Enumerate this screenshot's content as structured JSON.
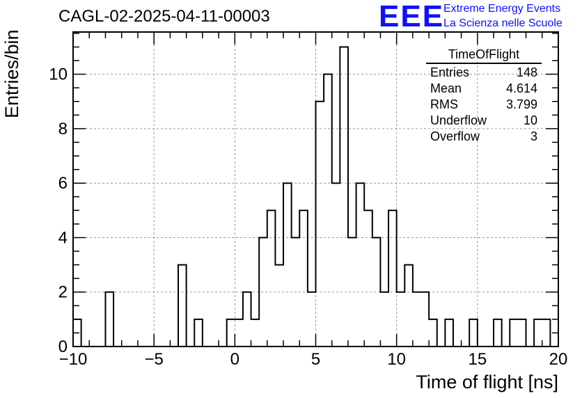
{
  "header": {
    "title": "CAGL-02-2025-04-11-00003",
    "logo_text": "EEE",
    "logo_line1": "Extreme Energy Events",
    "logo_line2": "La Scienza nelle Scuole"
  },
  "stats_box": {
    "title": "TimeOfFlight",
    "rows": [
      {
        "label": "Entries",
        "value": "148"
      },
      {
        "label": "Mean",
        "value": "4.614"
      },
      {
        "label": "RMS",
        "value": "3.799"
      },
      {
        "label": "Underflow",
        "value": "10"
      },
      {
        "label": "Overflow",
        "value": "3"
      }
    ]
  },
  "chart_data": {
    "type": "bar",
    "style": "step-histogram",
    "xlabel": "Time of flight [ns]",
    "ylabel": "Entries/bin",
    "xlim": [
      -10,
      20
    ],
    "ylim": [
      0,
      11.55
    ],
    "bin_width": 0.5,
    "grid": true,
    "x_ticks": [
      "−10",
      "−5",
      "0",
      "5",
      "10",
      "15",
      "20"
    ],
    "y_ticks": [
      "0",
      "2",
      "4",
      "6",
      "8",
      "10"
    ],
    "x_tick_values": [
      -10,
      -5,
      0,
      5,
      10,
      15,
      20
    ],
    "y_tick_values": [
      0,
      2,
      4,
      6,
      8,
      10
    ],
    "bins": [
      {
        "x": -10,
        "y": 1
      },
      {
        "x": -9.5,
        "y": 0
      },
      {
        "x": -9,
        "y": 0
      },
      {
        "x": -8.5,
        "y": 0
      },
      {
        "x": -8,
        "y": 2
      },
      {
        "x": -7.5,
        "y": 0
      },
      {
        "x": -7,
        "y": 0
      },
      {
        "x": -6.5,
        "y": 0
      },
      {
        "x": -6,
        "y": 0
      },
      {
        "x": -5.5,
        "y": 0
      },
      {
        "x": -5,
        "y": 0
      },
      {
        "x": -4.5,
        "y": 0
      },
      {
        "x": -4,
        "y": 0
      },
      {
        "x": -3.5,
        "y": 3
      },
      {
        "x": -3,
        "y": 0
      },
      {
        "x": -2.5,
        "y": 1
      },
      {
        "x": -2,
        "y": 0
      },
      {
        "x": -1.5,
        "y": 0
      },
      {
        "x": -1,
        "y": 0
      },
      {
        "x": -0.5,
        "y": 1
      },
      {
        "x": 0,
        "y": 1
      },
      {
        "x": 0.5,
        "y": 2
      },
      {
        "x": 1,
        "y": 1
      },
      {
        "x": 1.5,
        "y": 4
      },
      {
        "x": 2,
        "y": 5
      },
      {
        "x": 2.5,
        "y": 3
      },
      {
        "x": 3,
        "y": 6
      },
      {
        "x": 3.5,
        "y": 4
      },
      {
        "x": 4,
        "y": 5
      },
      {
        "x": 4.5,
        "y": 2
      },
      {
        "x": 5,
        "y": 9
      },
      {
        "x": 5.5,
        "y": 10
      },
      {
        "x": 6,
        "y": 6
      },
      {
        "x": 6.5,
        "y": 11
      },
      {
        "x": 7,
        "y": 4
      },
      {
        "x": 7.5,
        "y": 6
      },
      {
        "x": 8,
        "y": 5
      },
      {
        "x": 8.5,
        "y": 4
      },
      {
        "x": 9,
        "y": 2
      },
      {
        "x": 9.5,
        "y": 5
      },
      {
        "x": 10,
        "y": 2
      },
      {
        "x": 10.5,
        "y": 3
      },
      {
        "x": 11,
        "y": 2
      },
      {
        "x": 11.5,
        "y": 2
      },
      {
        "x": 12,
        "y": 1
      },
      {
        "x": 12.5,
        "y": 0
      },
      {
        "x": 13,
        "y": 1
      },
      {
        "x": 13.5,
        "y": 0
      },
      {
        "x": 14,
        "y": 0
      },
      {
        "x": 14.5,
        "y": 1
      },
      {
        "x": 15,
        "y": 0
      },
      {
        "x": 15.5,
        "y": 0
      },
      {
        "x": 16,
        "y": 1
      },
      {
        "x": 16.5,
        "y": 0
      },
      {
        "x": 17,
        "y": 1
      },
      {
        "x": 17.5,
        "y": 1
      },
      {
        "x": 18,
        "y": 0
      },
      {
        "x": 18.5,
        "y": 1
      },
      {
        "x": 19,
        "y": 1
      },
      {
        "x": 19.5,
        "y": 0
      }
    ]
  }
}
